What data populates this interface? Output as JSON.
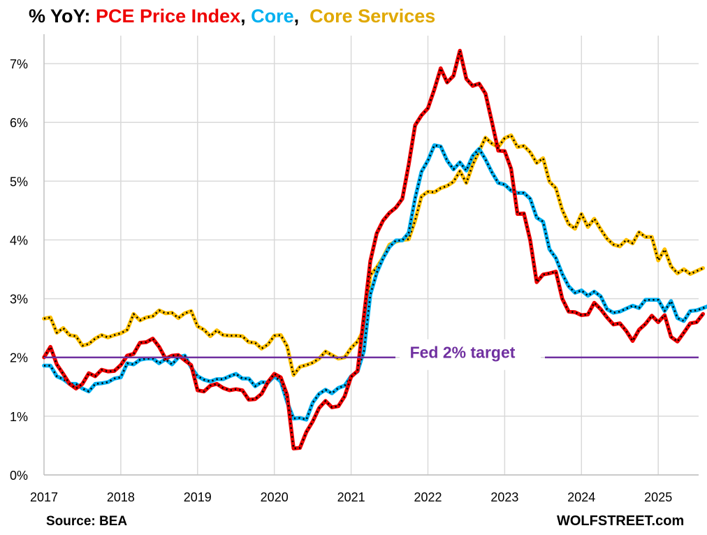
{
  "title": {
    "prefix": "% YoY: ",
    "part1": "PCE Price Index",
    "sep1": ", ",
    "part2": "Core",
    "sep2": ",  ",
    "part3": "Core Services"
  },
  "source": "Source: BEA",
  "brand": "WOLFSTREET.com",
  "colors": {
    "pce": "#ee0000",
    "core": "#00b0f0",
    "core_services": "#ffc000",
    "target": "#7030a0",
    "grid": "#d9d9d9",
    "text": "#000000"
  },
  "chart_data": {
    "type": "line",
    "title": "% YoY: PCE Price Index, Core, Core Services",
    "xlabel": "",
    "ylabel": "",
    "x_ticks": [
      "2017",
      "2018",
      "2019",
      "2020",
      "2021",
      "2022",
      "2023",
      "2024",
      "2025"
    ],
    "y_ticks": [
      "0%",
      "1%",
      "2%",
      "3%",
      "4%",
      "5%",
      "6%",
      "7%"
    ],
    "ylim": [
      0,
      7.5
    ],
    "xlim": [
      "2017-01",
      "2025-09"
    ],
    "grid": true,
    "annotations": [
      {
        "text": "Fed 2% target",
        "y": 2.0
      }
    ],
    "series": [
      {
        "name": "PCE Price Index",
        "start": "2017-01",
        "frequency": "monthly",
        "values": [
          2.0,
          2.18,
          1.88,
          1.72,
          1.55,
          1.47,
          1.55,
          1.73,
          1.68,
          1.79,
          1.76,
          1.77,
          1.87,
          2.03,
          2.06,
          2.25,
          2.26,
          2.32,
          2.18,
          1.98,
          2.03,
          2.04,
          1.95,
          1.87,
          1.44,
          1.42,
          1.52,
          1.55,
          1.48,
          1.44,
          1.46,
          1.44,
          1.28,
          1.29,
          1.38,
          1.58,
          1.72,
          1.66,
          1.36,
          0.45,
          0.46,
          0.73,
          0.91,
          1.14,
          1.26,
          1.15,
          1.17,
          1.34,
          1.67,
          1.77,
          2.7,
          3.64,
          4.11,
          4.33,
          4.46,
          4.55,
          4.7,
          5.28,
          5.95,
          6.12,
          6.24,
          6.56,
          6.92,
          6.68,
          6.79,
          7.22,
          6.74,
          6.62,
          6.66,
          6.49,
          6.01,
          5.52,
          5.51,
          5.21,
          4.44,
          4.45,
          3.99,
          3.28,
          3.41,
          3.43,
          3.46,
          3.0,
          2.78,
          2.77,
          2.72,
          2.73,
          2.93,
          2.82,
          2.68,
          2.56,
          2.58,
          2.45,
          2.28,
          2.47,
          2.57,
          2.71,
          2.6,
          2.72,
          2.35,
          2.27,
          2.42,
          2.58,
          2.6,
          2.74
        ]
      },
      {
        "name": "Core",
        "start": "2017-01",
        "frequency": "monthly",
        "values": [
          1.86,
          1.86,
          1.68,
          1.63,
          1.55,
          1.55,
          1.47,
          1.42,
          1.55,
          1.56,
          1.58,
          1.64,
          1.66,
          1.9,
          1.88,
          1.96,
          1.98,
          1.98,
          1.9,
          1.97,
          1.88,
          2.0,
          2.03,
          1.83,
          1.68,
          1.62,
          1.59,
          1.63,
          1.63,
          1.68,
          1.72,
          1.64,
          1.64,
          1.51,
          1.58,
          1.57,
          1.68,
          1.59,
          1.24,
          0.96,
          0.97,
          0.94,
          1.23,
          1.38,
          1.45,
          1.39,
          1.48,
          1.52,
          1.68,
          1.76,
          2.11,
          3.07,
          3.44,
          3.69,
          3.88,
          3.99,
          3.99,
          4.12,
          4.71,
          5.16,
          5.35,
          5.61,
          5.59,
          5.35,
          5.2,
          5.32,
          5.18,
          5.43,
          5.55,
          5.37,
          5.15,
          4.97,
          4.94,
          4.84,
          4.8,
          4.8,
          4.7,
          4.38,
          4.31,
          3.84,
          3.69,
          3.42,
          3.21,
          3.1,
          3.14,
          3.05,
          3.12,
          3.04,
          2.82,
          2.76,
          2.78,
          2.83,
          2.88,
          2.84,
          2.98,
          2.98,
          2.98,
          2.79,
          2.96,
          2.67,
          2.62,
          2.79,
          2.8,
          2.84,
          2.88,
          2.91
        ]
      },
      {
        "name": "Core Services",
        "start": "2017-01",
        "frequency": "monthly",
        "values": [
          2.66,
          2.68,
          2.42,
          2.5,
          2.38,
          2.36,
          2.2,
          2.23,
          2.32,
          2.38,
          2.34,
          2.38,
          2.41,
          2.47,
          2.74,
          2.63,
          2.68,
          2.7,
          2.8,
          2.75,
          2.76,
          2.67,
          2.75,
          2.79,
          2.53,
          2.47,
          2.36,
          2.46,
          2.38,
          2.37,
          2.37,
          2.36,
          2.26,
          2.25,
          2.15,
          2.22,
          2.37,
          2.38,
          2.19,
          1.7,
          1.84,
          1.87,
          1.91,
          1.98,
          2.1,
          2.04,
          1.98,
          2.0,
          2.16,
          2.27,
          2.47,
          3.4,
          3.53,
          3.7,
          3.92,
          3.97,
          4.0,
          4.01,
          4.33,
          4.74,
          4.82,
          4.81,
          4.88,
          4.92,
          4.99,
          5.17,
          4.97,
          5.28,
          5.51,
          5.74,
          5.64,
          5.58,
          5.73,
          5.78,
          5.58,
          5.6,
          5.49,
          5.31,
          5.39,
          4.99,
          4.88,
          4.51,
          4.27,
          4.19,
          4.44,
          4.22,
          4.36,
          4.18,
          4.02,
          3.92,
          3.89,
          4.0,
          3.94,
          4.13,
          4.05,
          4.05,
          3.65,
          3.84,
          3.55,
          3.43,
          3.5,
          3.42,
          3.47,
          3.52
        ]
      }
    ]
  }
}
